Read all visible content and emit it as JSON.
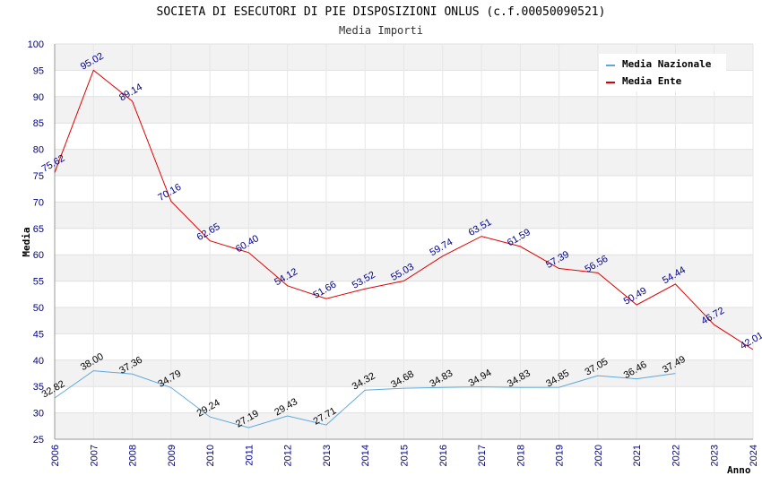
{
  "chart_data": {
    "type": "line",
    "title": "SOCIETA DI ESECUTORI DI PIE DISPOSIZIONI ONLUS (c.f.00050090521)",
    "subtitle": "Media Importi",
    "xlabel": "Anno",
    "ylabel": "Media",
    "ylim": [
      25,
      100
    ],
    "yticks": [
      25,
      30,
      35,
      40,
      45,
      50,
      55,
      60,
      65,
      70,
      75,
      80,
      85,
      90,
      95,
      100
    ],
    "x": [
      2006,
      2007,
      2008,
      2009,
      2010,
      2011,
      2012,
      2013,
      2014,
      2015,
      2016,
      2017,
      2018,
      2019,
      2020,
      2021,
      2022,
      2023,
      2024
    ],
    "legend_position": "top-right",
    "series": [
      {
        "name": "Media Nazionale",
        "color": "#5fa8dc",
        "label_color": "#000000",
        "values": [
          32.82,
          38.0,
          37.36,
          34.79,
          29.24,
          27.19,
          29.43,
          27.71,
          34.32,
          34.68,
          34.83,
          34.94,
          34.83,
          34.85,
          37.05,
          36.46,
          37.49,
          null,
          null
        ],
        "labels": [
          "32.82",
          "38.00",
          "37.36",
          "34.79",
          "29.24",
          "27.19",
          "29.43",
          "27.71",
          "34.32",
          "34.68",
          "34.83",
          "34.94",
          "34.83",
          "34.85",
          "37.05",
          "36.46",
          "37.49",
          null,
          null
        ]
      },
      {
        "name": "Media Ente",
        "color": "#e00000",
        "label_color": "#00008b",
        "values": [
          75.62,
          95.02,
          89.14,
          70.16,
          62.65,
          60.4,
          54.12,
          51.66,
          53.52,
          55.03,
          59.74,
          63.51,
          61.59,
          57.39,
          56.56,
          50.49,
          54.44,
          46.72,
          42.01
        ],
        "labels": [
          "75.62",
          "95.02",
          "89.14",
          "70.16",
          "62.65",
          "60.40",
          "54.12",
          "51.66",
          "53.52",
          "55.03",
          "59.74",
          "63.51",
          "61.59",
          "57.39",
          "56.56",
          "50.49",
          "54.44",
          "46.72",
          "42.01"
        ]
      }
    ]
  }
}
